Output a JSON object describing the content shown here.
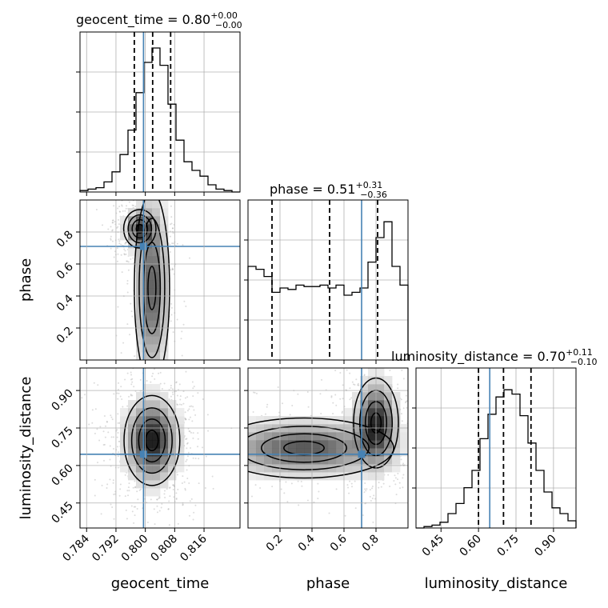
{
  "chart_data": {
    "type": "corner",
    "parameters": [
      {
        "name": "geocent_time",
        "label": "geocent_time",
        "range": [
          0.7822,
          0.8258
        ],
        "ticks": [
          0.784,
          0.792,
          0.8,
          0.808,
          0.816
        ],
        "tick_labels": [
          "0.784",
          "0.792",
          "0.800",
          "0.808",
          "0.816"
        ],
        "truth": 0.7995,
        "quantiles": [
          0.797,
          0.802,
          0.8069
        ],
        "title": {
          "main": "geocent_time = 0.80",
          "plus": "+0.00",
          "minus": "−0.00"
        },
        "hist": [
          0.01,
          0.02,
          0.03,
          0.07,
          0.14,
          0.26,
          0.43,
          0.69,
          0.9,
          1.0,
          0.88,
          0.61,
          0.36,
          0.21,
          0.15,
          0.11,
          0.05,
          0.02,
          0.01,
          0.0
        ]
      },
      {
        "name": "phase",
        "label": "phase",
        "range": [
          0.0,
          1.0
        ],
        "ticks": [
          0.2,
          0.4,
          0.6,
          0.8
        ],
        "tick_labels": [
          "0.2",
          "0.4",
          "0.6",
          "0.8"
        ],
        "truth": 0.71,
        "quantiles": [
          0.15,
          0.51,
          0.81
        ],
        "title": {
          "main": "phase = 0.51",
          "plus": "+0.31",
          "minus": "−0.36"
        },
        "hist": [
          0.65,
          0.63,
          0.58,
          0.47,
          0.5,
          0.49,
          0.52,
          0.51,
          0.51,
          0.52,
          0.5,
          0.52,
          0.45,
          0.47,
          0.5,
          0.68,
          0.85,
          0.96,
          0.65,
          0.52
        ]
      },
      {
        "name": "luminosity_distance",
        "label": "luminosity_distance",
        "range": [
          0.35,
          0.99
        ],
        "ticks": [
          0.45,
          0.6,
          0.75,
          0.9
        ],
        "tick_labels": [
          "0.45",
          "0.60",
          "0.75",
          "0.90"
        ],
        "truth": 0.645,
        "quantiles": [
          0.6,
          0.7,
          0.81
        ],
        "title": {
          "main": "luminosity_distance = 0.70",
          "plus": "+0.11",
          "minus": "−0.10"
        },
        "hist": [
          0.0,
          0.01,
          0.02,
          0.04,
          0.1,
          0.17,
          0.28,
          0.4,
          0.62,
          0.79,
          0.91,
          0.96,
          0.93,
          0.78,
          0.59,
          0.4,
          0.25,
          0.14,
          0.1,
          0.05
        ]
      }
    ],
    "pairs": [
      {
        "x": "geocent_time",
        "y": "phase",
        "blobs": [
          {
            "cx": 0.8018,
            "cy": 0.45,
            "sx": 0.0024,
            "sy": 0.3,
            "w": 0.85
          },
          {
            "cx": 0.7985,
            "cy": 0.82,
            "sx": 0.0022,
            "sy": 0.06,
            "w": 1.0
          }
        ]
      },
      {
        "x": "geocent_time",
        "y": "luminosity_distance",
        "blobs": [
          {
            "cx": 0.8018,
            "cy": 0.7,
            "sx": 0.0038,
            "sy": 0.09,
            "w": 1.0
          }
        ]
      },
      {
        "x": "phase",
        "y": "luminosity_distance",
        "blobs": [
          {
            "cx": 0.35,
            "cy": 0.67,
            "sx": 0.28,
            "sy": 0.06,
            "w": 0.75
          },
          {
            "cx": 0.8,
            "cy": 0.77,
            "sx": 0.07,
            "sy": 0.09,
            "w": 1.0
          }
        ]
      }
    ],
    "colors": {
      "truth": "#4682b4",
      "hist_line": "#000000",
      "quantile_line": "#000000",
      "grid": "#b0b0b0",
      "density_dark": "#000000",
      "scatter": "#9a9a9a"
    },
    "grid": true,
    "x_tick_rotation": 45,
    "y_tick_rotation": 45
  }
}
